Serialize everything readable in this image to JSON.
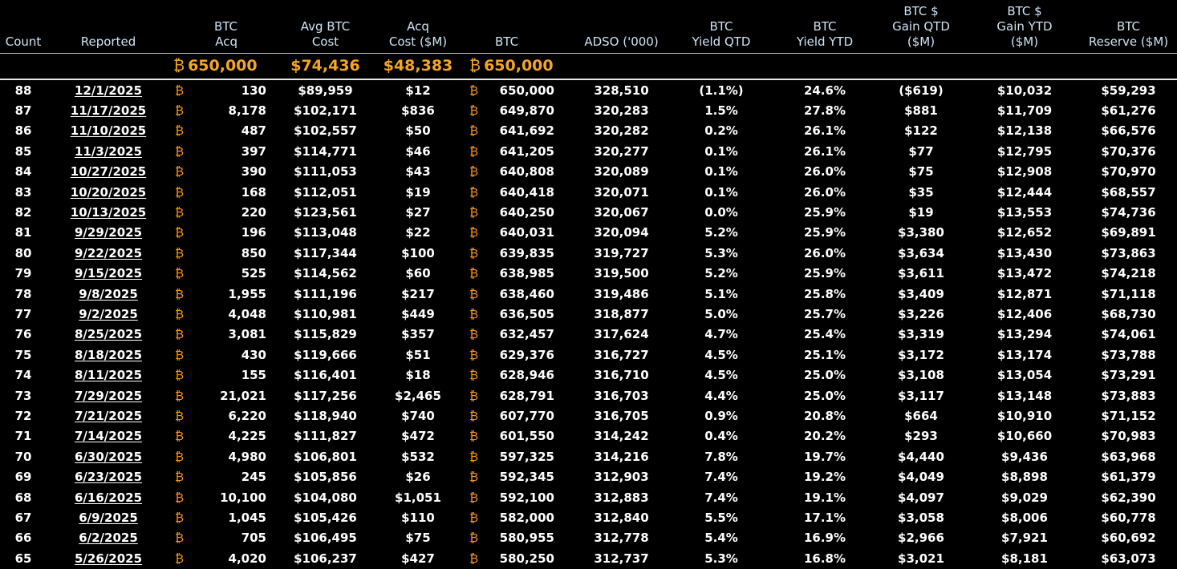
{
  "headers": {
    "count": "Count",
    "reported": "Reported",
    "btc_acq": [
      "BTC",
      "Acq"
    ],
    "avg_cost": [
      "Avg BTC",
      "Cost"
    ],
    "acq_cost": [
      "Acq",
      "Cost ($M)"
    ],
    "btc": "BTC",
    "adso": "ADSO ('000)",
    "yield_qtd": [
      "BTC",
      "Yield QTD"
    ],
    "yield_ytd": [
      "BTC",
      "Yield YTD"
    ],
    "gain_qtd": [
      "BTC $",
      "Gain QTD",
      "($M)"
    ],
    "gain_ytd": [
      "BTC $",
      "Gain YTD",
      "($M)"
    ],
    "reserve": [
      "BTC",
      "Reserve ($M)"
    ]
  },
  "btc_symbol": "₿",
  "totals": {
    "btc_acq": "650,000",
    "avg_cost": "$74,436",
    "acq_cost": "$48,383",
    "btc": "650,000"
  },
  "rows": [
    [
      "88",
      "12/1/2025",
      "130",
      "$89,959",
      "$12",
      "650,000",
      "328,510",
      "(1.1%)",
      "24.6%",
      "($619)",
      "$10,032",
      "$59,293"
    ],
    [
      "87",
      "11/17/2025",
      "8,178",
      "$102,171",
      "$836",
      "649,870",
      "320,283",
      "1.5%",
      "27.8%",
      "$881",
      "$11,709",
      "$61,276"
    ],
    [
      "86",
      "11/10/2025",
      "487",
      "$102,557",
      "$50",
      "641,692",
      "320,282",
      "0.2%",
      "26.1%",
      "$122",
      "$12,138",
      "$66,576"
    ],
    [
      "85",
      "11/3/2025",
      "397",
      "$114,771",
      "$46",
      "641,205",
      "320,277",
      "0.1%",
      "26.1%",
      "$77",
      "$12,795",
      "$70,376"
    ],
    [
      "84",
      "10/27/2025",
      "390",
      "$111,053",
      "$43",
      "640,808",
      "320,089",
      "0.1%",
      "26.0%",
      "$75",
      "$12,908",
      "$70,970"
    ],
    [
      "83",
      "10/20/2025",
      "168",
      "$112,051",
      "$19",
      "640,418",
      "320,071",
      "0.1%",
      "26.0%",
      "$35",
      "$12,444",
      "$68,557"
    ],
    [
      "82",
      "10/13/2025",
      "220",
      "$123,561",
      "$27",
      "640,250",
      "320,067",
      "0.0%",
      "25.9%",
      "$19",
      "$13,553",
      "$74,736"
    ],
    [
      "81",
      "9/29/2025",
      "196",
      "$113,048",
      "$22",
      "640,031",
      "320,094",
      "5.2%",
      "25.9%",
      "$3,380",
      "$12,652",
      "$69,891"
    ],
    [
      "80",
      "9/22/2025",
      "850",
      "$117,344",
      "$100",
      "639,835",
      "319,727",
      "5.3%",
      "26.0%",
      "$3,634",
      "$13,430",
      "$73,863"
    ],
    [
      "79",
      "9/15/2025",
      "525",
      "$114,562",
      "$60",
      "638,985",
      "319,500",
      "5.2%",
      "25.9%",
      "$3,611",
      "$13,472",
      "$74,218"
    ],
    [
      "78",
      "9/8/2025",
      "1,955",
      "$111,196",
      "$217",
      "638,460",
      "319,486",
      "5.1%",
      "25.8%",
      "$3,409",
      "$12,871",
      "$71,118"
    ],
    [
      "77",
      "9/2/2025",
      "4,048",
      "$110,981",
      "$449",
      "636,505",
      "318,877",
      "5.0%",
      "25.7%",
      "$3,226",
      "$12,406",
      "$68,730"
    ],
    [
      "76",
      "8/25/2025",
      "3,081",
      "$115,829",
      "$357",
      "632,457",
      "317,624",
      "4.7%",
      "25.4%",
      "$3,319",
      "$13,294",
      "$74,061"
    ],
    [
      "75",
      "8/18/2025",
      "430",
      "$119,666",
      "$51",
      "629,376",
      "316,727",
      "4.5%",
      "25.1%",
      "$3,172",
      "$13,174",
      "$73,788"
    ],
    [
      "74",
      "8/11/2025",
      "155",
      "$116,401",
      "$18",
      "628,946",
      "316,710",
      "4.5%",
      "25.0%",
      "$3,108",
      "$13,054",
      "$73,291"
    ],
    [
      "73",
      "7/29/2025",
      "21,021",
      "$117,256",
      "$2,465",
      "628,791",
      "316,703",
      "4.4%",
      "25.0%",
      "$3,117",
      "$13,148",
      "$73,883"
    ],
    [
      "72",
      "7/21/2025",
      "6,220",
      "$118,940",
      "$740",
      "607,770",
      "316,705",
      "0.9%",
      "20.8%",
      "$664",
      "$10,910",
      "$71,152"
    ],
    [
      "71",
      "7/14/2025",
      "4,225",
      "$111,827",
      "$472",
      "601,550",
      "314,242",
      "0.4%",
      "20.2%",
      "$293",
      "$10,660",
      "$70,983"
    ],
    [
      "70",
      "6/30/2025",
      "4,980",
      "$106,801",
      "$532",
      "597,325",
      "314,216",
      "7.8%",
      "19.7%",
      "$4,440",
      "$9,436",
      "$63,968"
    ],
    [
      "69",
      "6/23/2025",
      "245",
      "$105,856",
      "$26",
      "592,345",
      "312,903",
      "7.4%",
      "19.2%",
      "$4,049",
      "$8,898",
      "$61,379"
    ],
    [
      "68",
      "6/16/2025",
      "10,100",
      "$104,080",
      "$1,051",
      "592,100",
      "312,883",
      "7.4%",
      "19.1%",
      "$4,097",
      "$9,029",
      "$62,390"
    ],
    [
      "67",
      "6/9/2025",
      "1,045",
      "$105,426",
      "$110",
      "582,000",
      "312,840",
      "5.5%",
      "17.1%",
      "$3,058",
      "$8,006",
      "$60,778"
    ],
    [
      "66",
      "6/2/2025",
      "705",
      "$106,495",
      "$75",
      "580,955",
      "312,778",
      "5.4%",
      "16.9%",
      "$2,966",
      "$7,921",
      "$60,692"
    ],
    [
      "65",
      "5/26/2025",
      "4,020",
      "$106,237",
      "$427",
      "580,250",
      "312,737",
      "5.3%",
      "16.8%",
      "$3,021",
      "$8,181",
      "$63,073"
    ]
  ]
}
